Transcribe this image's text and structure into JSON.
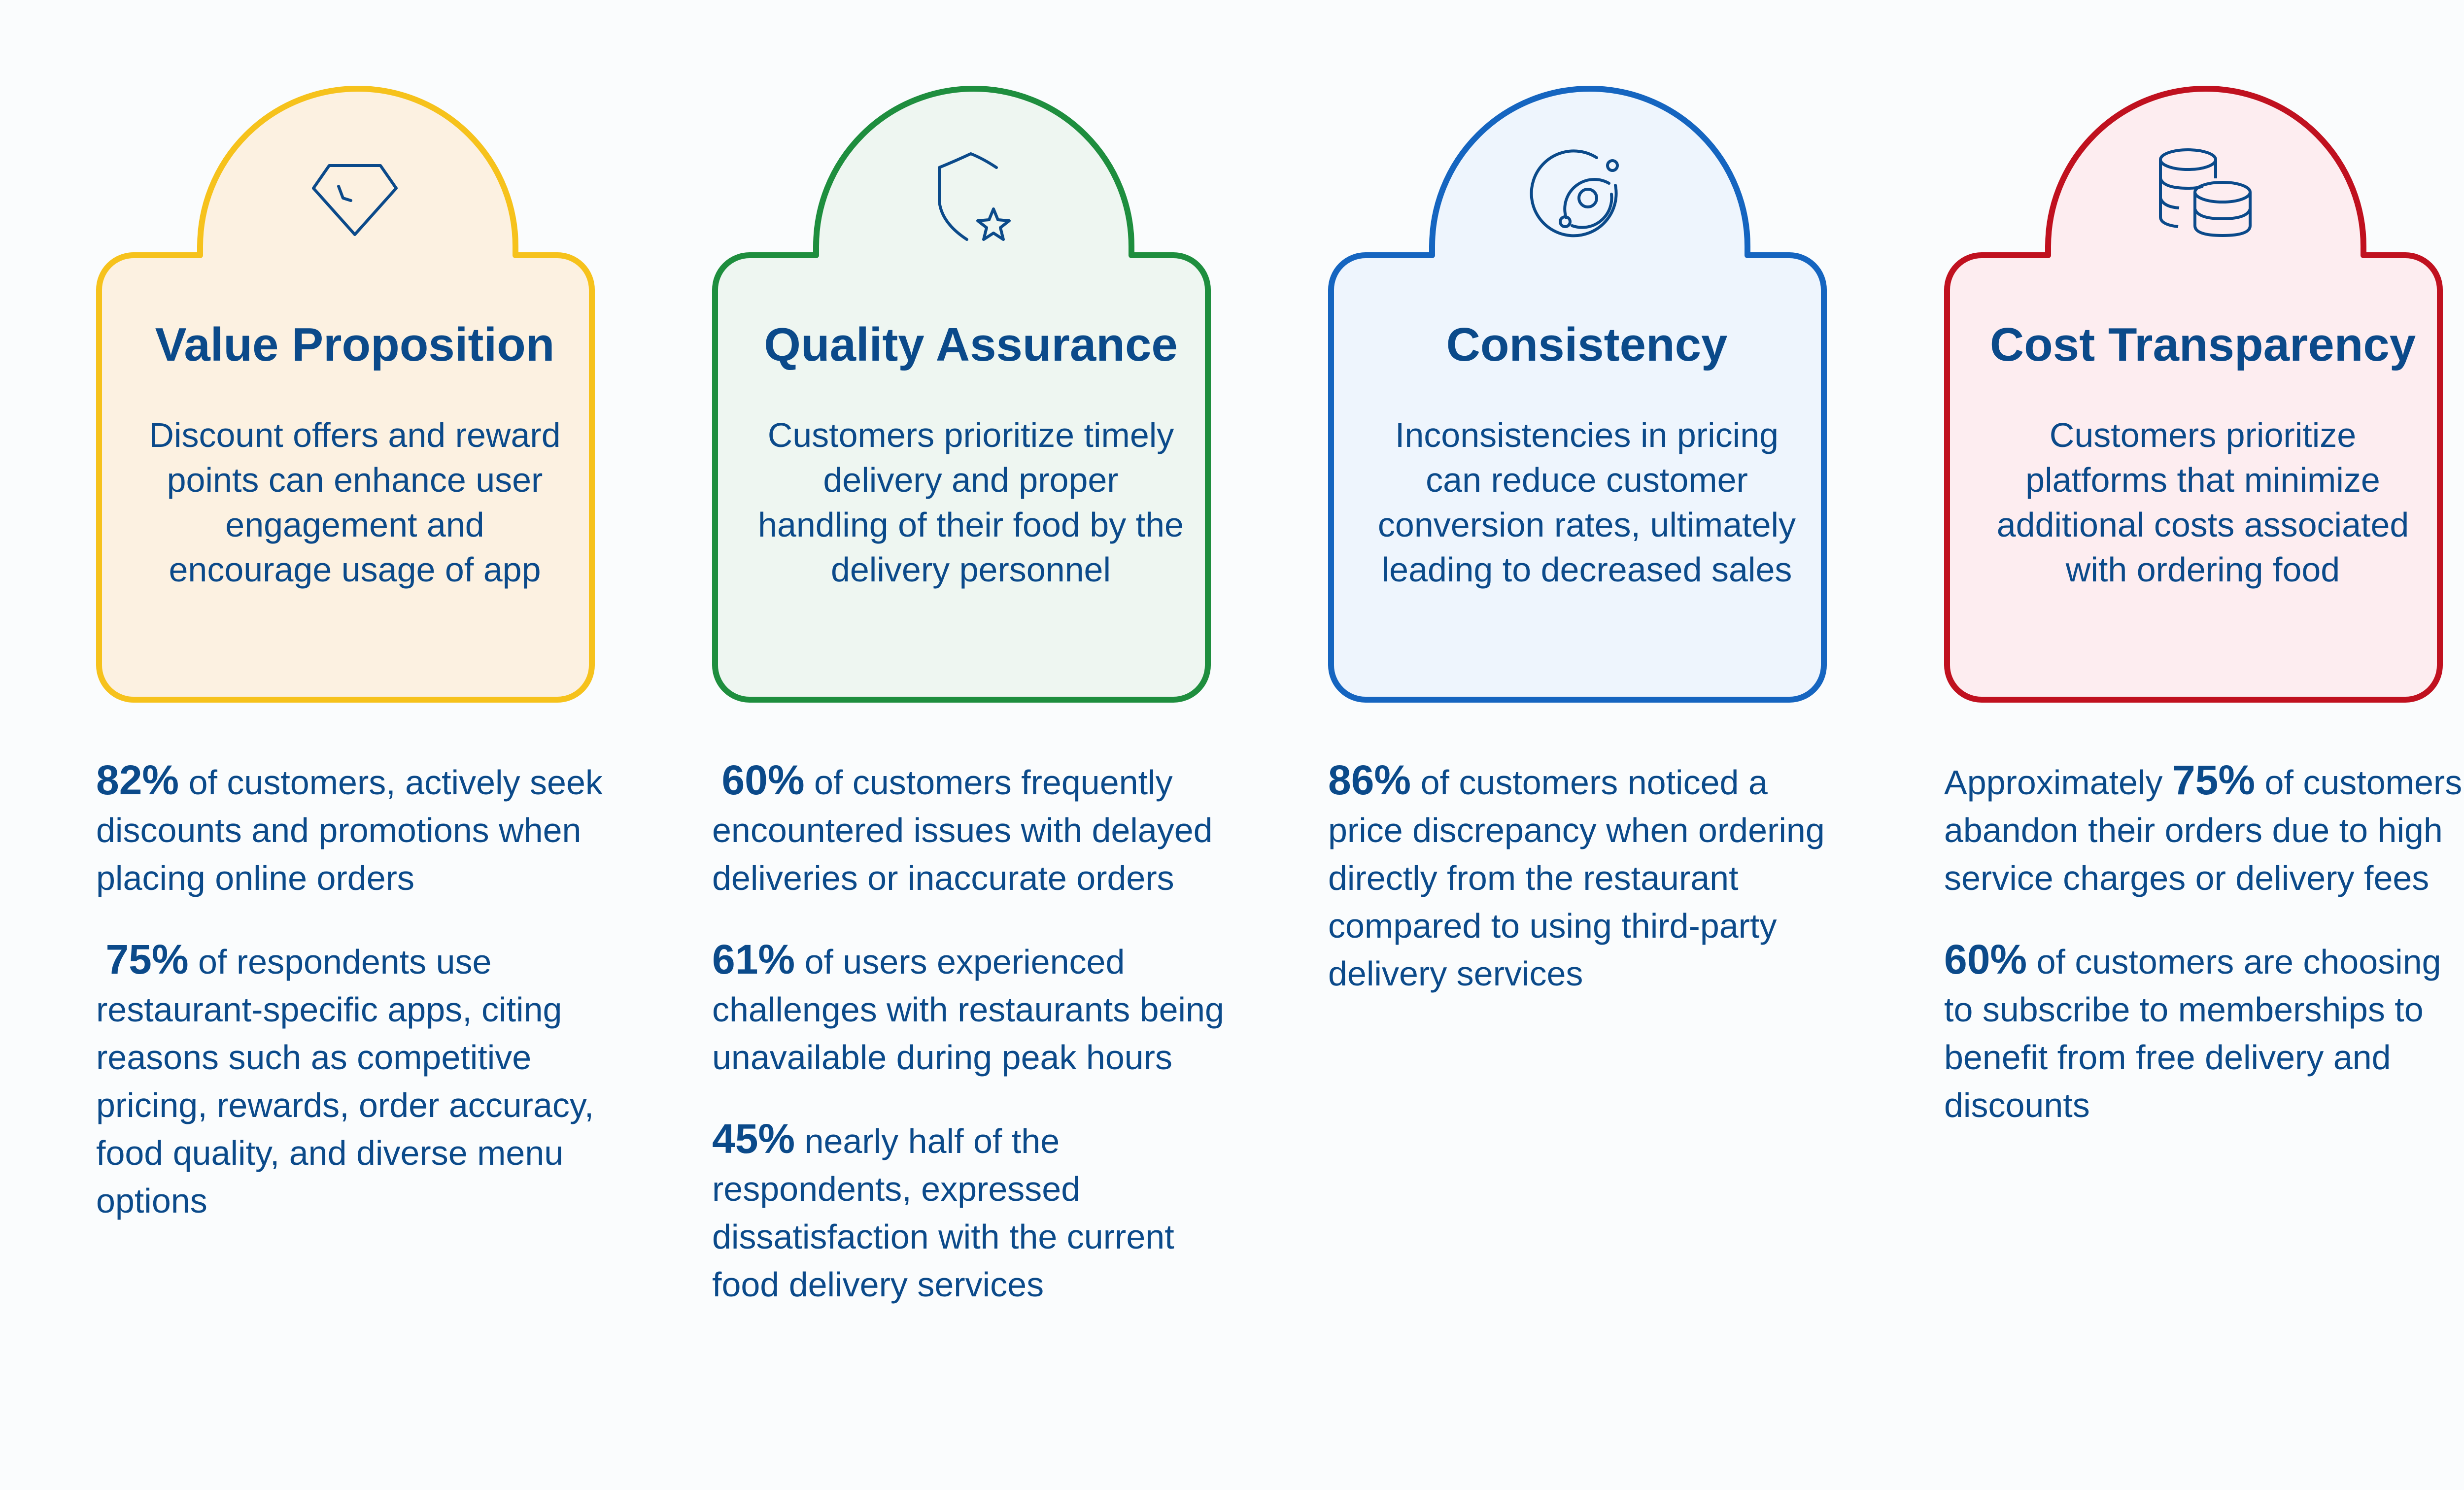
{
  "cards": [
    {
      "title": "Value Proposition",
      "description": "Discount offers and reward points can enhance user engagement and encourage usage of app",
      "icon": "diamond-icon",
      "border_color": "#f6c21c",
      "fill_color": "#fcf1e1",
      "stats": [
        {
          "prefix": "",
          "value": "82%",
          "text": " of customers, actively seek discounts and promotions when placing online orders"
        },
        {
          "prefix": "",
          "value": "75%",
          "text": " of respondents use restaurant-specific apps, citing reasons such as competitive pricing, rewards, order accuracy, food quality, and diverse menu options"
        }
      ]
    },
    {
      "title": "Quality Assurance",
      "description": "Customers prioritize timely delivery and proper handling of their food by the delivery personnel",
      "icon": "shield-star-icon",
      "border_color": "#1e8e3e",
      "fill_color": "#eef6f1",
      "stats": [
        {
          "prefix": "",
          "value": "60%",
          "text": " of customers frequently encountered issues with delayed deliveries or inaccurate orders"
        },
        {
          "prefix": "",
          "value": "61%",
          "text": " of users experienced challenges with restaurants being unavailable during peak hours"
        },
        {
          "prefix": "",
          "value": "45%",
          "text": " nearly half of the respondents, expressed dissatisfaction with the current food delivery services"
        }
      ]
    },
    {
      "title": "Consistency",
      "description": "Inconsistencies in pricing can reduce customer conversion rates, ultimately leading to decreased sales",
      "icon": "orbit-icon",
      "border_color": "#1565c0",
      "fill_color": "#eef5fd",
      "stats": [
        {
          "prefix": "",
          "value": "86%",
          "text": " of customers noticed a price discrepancy when ordering directly from the restaurant compared to using third-party delivery services"
        }
      ]
    },
    {
      "title": "Cost Transparency",
      "description": "Customers prioritize platforms that minimize additional costs associated with ordering food",
      "icon": "coins-icon",
      "border_color": "#c0111f",
      "fill_color": "#fdedf0",
      "stats": [
        {
          "prefix": "Approximately ",
          "value": "75%",
          "text": " of customers abandon their orders due to high service charges or delivery fees"
        },
        {
          "prefix": "",
          "value": "60%",
          "text": " of customers are choosing to subscribe to memberships to benefit from free delivery and discounts"
        }
      ]
    }
  ]
}
